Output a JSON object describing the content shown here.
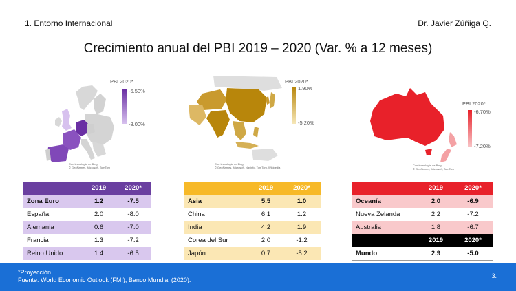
{
  "header": {
    "section": "1. Entorno Internacional",
    "author": "Dr. Javier Zúñiga Q."
  },
  "title": "Crecimiento anual del PBI 2019 – 2020 (Var. % a 12 meses)",
  "maps": [
    {
      "region": "Europe",
      "legend_title": "PBI 2020*",
      "legend_max": "-6.50%",
      "legend_min": "-8.00%",
      "credit_1": "Con tecnología de Bing",
      "credit_2": "© GeoNames, Microsoft, TomTom",
      "colors": {
        "dark": "#6a2fa3",
        "light": "#d7c1ee"
      }
    },
    {
      "region": "Asia",
      "legend_title": "PBI 2020*",
      "legend_max": "1.90%",
      "legend_min": "-5.20%",
      "credit_1": "Con tecnología de Bing",
      "credit_2": "© GeoNames, Microsoft, Navinfo, TomTom, Wikipedia",
      "colors": {
        "dark": "#b8860b",
        "light": "#f6e7b8"
      }
    },
    {
      "region": "Oceania",
      "legend_title": "PBI 2020*",
      "legend_max": "-6.70%",
      "legend_min": "-7.20%",
      "credit_1": "Con tecnología de Bing",
      "credit_2": "© GeoNames, Microsoft, TomTom",
      "colors": {
        "dark": "#e8212a",
        "light": "#f9c6c8"
      }
    }
  ],
  "tables": {
    "europe": {
      "header_color": "#6a3fa0",
      "col1": "2019",
      "col2": "2020*",
      "rows": [
        {
          "name": "Zona Euro",
          "v2019": "1.2",
          "v2020": "-7.5"
        },
        {
          "name": "España",
          "v2019": "2.0",
          "v2020": "-8.0"
        },
        {
          "name": "Alemania",
          "v2019": "0.6",
          "v2020": "-7.0"
        },
        {
          "name": "Francia",
          "v2019": "1.3",
          "v2020": "-7.2"
        },
        {
          "name": "Reino Unido",
          "v2019": "1.4",
          "v2020": "-6.5"
        }
      ]
    },
    "asia": {
      "header_color": "#f7b928",
      "col1": "2019",
      "col2": "2020*",
      "rows": [
        {
          "name": "Asia",
          "v2019": "5.5",
          "v2020": "1.0"
        },
        {
          "name": "China",
          "v2019": "6.1",
          "v2020": "1.2"
        },
        {
          "name": "India",
          "v2019": "4.2",
          "v2020": "1.9"
        },
        {
          "name": "Corea del Sur",
          "v2019": "2.0",
          "v2020": "-1.2"
        },
        {
          "name": "Japón",
          "v2019": "0.7",
          "v2020": "-5.2"
        }
      ]
    },
    "oceania": {
      "header_color": "#e8212a",
      "col1": "2019",
      "col2": "2020*",
      "rows": [
        {
          "name": "Oceanía",
          "v2019": "2.0",
          "v2020": "-6.9"
        },
        {
          "name": "Nueva Zelanda",
          "v2019": "2.2",
          "v2020": "-7.2"
        },
        {
          "name": "Australia",
          "v2019": "1.8",
          "v2020": "-6.7"
        }
      ]
    },
    "world": {
      "header_color": "#000000",
      "col1": "2019",
      "col2": "2020*",
      "rows": [
        {
          "name": "Mundo",
          "v2019": "2.9",
          "v2020": "-5.0"
        }
      ]
    }
  },
  "footer": {
    "note_1": "*Proyección",
    "note_2": "Fuente: World Economic Outlook (FMI), Banco Mundial (2020).",
    "page": "3."
  }
}
